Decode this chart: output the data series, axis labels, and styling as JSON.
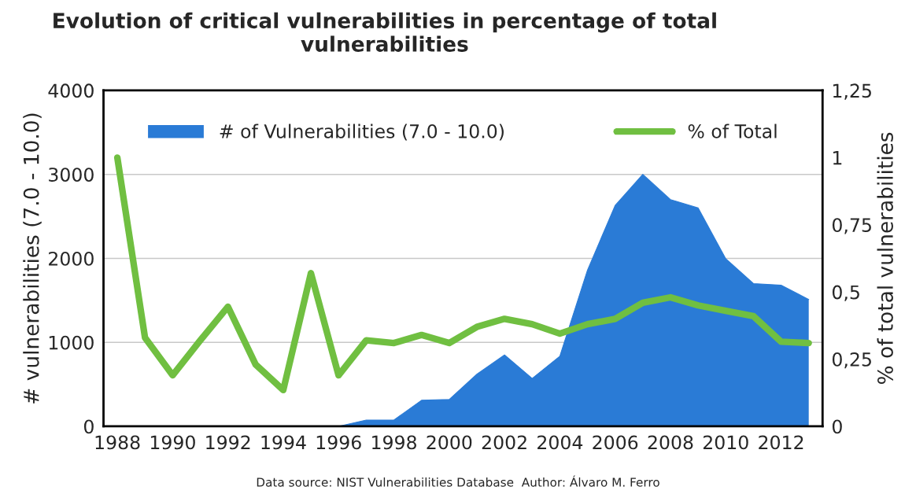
{
  "chart_data": {
    "type": "area",
    "title": "Evolution of critical vulnerabilities in percentage of total\nvulnerabilities",
    "ylabel": "# vulnerabilities (7.0 - 10.0)",
    "y2label": "% of total vulnerabilities",
    "x": [
      1988,
      1989,
      1990,
      1991,
      1992,
      1993,
      1994,
      1995,
      1996,
      1997,
      1998,
      1999,
      2000,
      2001,
      2002,
      2003,
      2004,
      2005,
      2006,
      2007,
      2008,
      2009,
      2010,
      2011,
      2012,
      2013
    ],
    "series": [
      {
        "name": "# of Vulnerabilities (7.0 - 10.0)",
        "color": "#2a7bd6",
        "values": [
          0,
          0,
          0,
          0,
          0,
          0,
          0,
          0,
          0,
          75,
          75,
          310,
          320,
          620,
          850,
          570,
          835,
          1860,
          2630,
          3000,
          2700,
          2600,
          1995,
          1700,
          1680,
          1510
        ]
      },
      {
        "name": "% of Total",
        "type": "line",
        "axis": "y2",
        "color": "#70bf41",
        "values": [
          1.0,
          0.33,
          0.19,
          0.32,
          0.445,
          0.23,
          0.135,
          0.57,
          0.19,
          0.32,
          0.31,
          0.34,
          0.31,
          0.37,
          0.4,
          0.38,
          0.345,
          0.38,
          0.4,
          0.46,
          0.48,
          0.45,
          0.43,
          0.41,
          0.315,
          0.31
        ]
      }
    ],
    "xlim": [
      1987.5,
      2013.5
    ],
    "xticks": [
      1988,
      1990,
      1992,
      1994,
      1996,
      1998,
      2000,
      2002,
      2004,
      2006,
      2008,
      2010,
      2012
    ],
    "ylim": [
      0,
      4000
    ],
    "yticks": [
      0,
      1000,
      2000,
      3000,
      4000
    ],
    "y2lim": [
      0,
      1.25
    ],
    "y2ticks": [
      0,
      {
        "value": 0.25,
        "label": "0,25"
      },
      {
        "value": 0.5,
        "label": "0,5"
      },
      {
        "value": 0.75,
        "label": "0,75"
      },
      1,
      {
        "value": 1.25,
        "label": "1,25"
      }
    ],
    "grid": "y",
    "legend": "top",
    "line_style": "solid",
    "marker": "none",
    "annotations": [
      "Data source: NIST Vulnerabilities Database  Author: Álvaro M. Ferro"
    ]
  }
}
